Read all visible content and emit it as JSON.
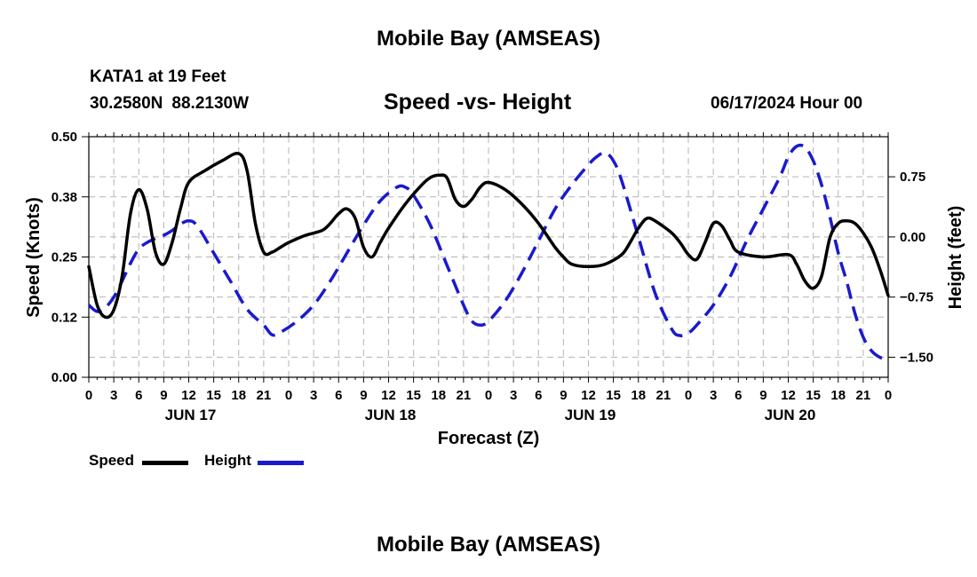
{
  "page": {
    "top_title": "Mobile Bay (AMSEAS)",
    "bottom_title": "Mobile Bay (AMSEAS)",
    "station": "KATA1 at 19 Feet",
    "lat": "30.2580N",
    "lon": "88.2130W",
    "datetime": "06/17/2024 Hour 00"
  },
  "chart_data": {
    "type": "line",
    "title": "Speed -vs- Height",
    "xlabel": "Forecast (Z)",
    "ylabel_left": "Speed (Knots)",
    "ylabel_right": "Height (feet)",
    "x_range_hours": [
      0,
      96
    ],
    "x_ticks": [
      {
        "h": 0,
        "label": "0"
      },
      {
        "h": 3,
        "label": "3"
      },
      {
        "h": 6,
        "label": "6"
      },
      {
        "h": 9,
        "label": "9"
      },
      {
        "h": 12,
        "label": "12"
      },
      {
        "h": 15,
        "label": "15"
      },
      {
        "h": 18,
        "label": "18"
      },
      {
        "h": 21,
        "label": "21"
      },
      {
        "h": 24,
        "label": "0"
      },
      {
        "h": 27,
        "label": "3"
      },
      {
        "h": 30,
        "label": "6"
      },
      {
        "h": 33,
        "label": "9"
      },
      {
        "h": 36,
        "label": "12"
      },
      {
        "h": 39,
        "label": "15"
      },
      {
        "h": 42,
        "label": "18"
      },
      {
        "h": 45,
        "label": "21"
      },
      {
        "h": 48,
        "label": "0"
      },
      {
        "h": 51,
        "label": "3"
      },
      {
        "h": 54,
        "label": "6"
      },
      {
        "h": 57,
        "label": "9"
      },
      {
        "h": 60,
        "label": "12"
      },
      {
        "h": 63,
        "label": "15"
      },
      {
        "h": 66,
        "label": "18"
      },
      {
        "h": 69,
        "label": "21"
      },
      {
        "h": 72,
        "label": "0"
      },
      {
        "h": 75,
        "label": "3"
      },
      {
        "h": 78,
        "label": "6"
      },
      {
        "h": 81,
        "label": "9"
      },
      {
        "h": 84,
        "label": "12"
      },
      {
        "h": 87,
        "label": "15"
      },
      {
        "h": 90,
        "label": "18"
      },
      {
        "h": 93,
        "label": "21"
      },
      {
        "h": 96,
        "label": "0"
      }
    ],
    "day_labels": [
      {
        "h": 12,
        "label": "JUN 17"
      },
      {
        "h": 36,
        "label": "JUN 18"
      },
      {
        "h": 60,
        "label": "JUN 19"
      },
      {
        "h": 84,
        "label": "JUN 20"
      }
    ],
    "ylim_left": [
      0.0,
      0.5
    ],
    "y_ticks_left": [
      {
        "v": 0.0,
        "label": "0.00"
      },
      {
        "v": 0.125,
        "label": "0.12"
      },
      {
        "v": 0.25,
        "label": "0.25"
      },
      {
        "v": 0.375,
        "label": "0.38"
      },
      {
        "v": 0.5,
        "label": "0.50"
      }
    ],
    "ylim_right": [
      -1.75,
      1.25
    ],
    "y_ticks_right": [
      {
        "v": 0.75,
        "label": "0.75"
      },
      {
        "v": 0.0,
        "label": "0.00"
      },
      {
        "v": -0.75,
        "label": "-0.75"
      },
      {
        "v": -1.5,
        "label": "-1.50"
      }
    ],
    "grid": true,
    "legend_position": "bottom-left",
    "series": [
      {
        "name": "Speed",
        "axis": "left",
        "color": "#000000",
        "style": "solid",
        "points": [
          [
            0,
            0.23
          ],
          [
            1,
            0.15
          ],
          [
            2,
            0.125
          ],
          [
            3,
            0.14
          ],
          [
            4,
            0.21
          ],
          [
            5,
            0.34
          ],
          [
            6,
            0.39
          ],
          [
            7,
            0.35
          ],
          [
            8,
            0.26
          ],
          [
            9,
            0.235
          ],
          [
            10,
            0.28
          ],
          [
            11,
            0.35
          ],
          [
            12,
            0.405
          ],
          [
            14,
            0.43
          ],
          [
            16,
            0.45
          ],
          [
            18,
            0.465
          ],
          [
            19,
            0.43
          ],
          [
            20,
            0.32
          ],
          [
            21,
            0.26
          ],
          [
            22,
            0.26
          ],
          [
            23,
            0.27
          ],
          [
            24,
            0.28
          ],
          [
            26,
            0.295
          ],
          [
            28,
            0.305
          ],
          [
            29,
            0.32
          ],
          [
            30,
            0.34
          ],
          [
            31,
            0.35
          ],
          [
            32,
            0.33
          ],
          [
            33,
            0.27
          ],
          [
            34,
            0.25
          ],
          [
            35,
            0.28
          ],
          [
            36,
            0.31
          ],
          [
            38,
            0.36
          ],
          [
            40,
            0.4
          ],
          [
            41,
            0.415
          ],
          [
            42,
            0.42
          ],
          [
            43,
            0.415
          ],
          [
            44,
            0.37
          ],
          [
            45,
            0.355
          ],
          [
            46,
            0.37
          ],
          [
            47,
            0.395
          ],
          [
            48,
            0.405
          ],
          [
            50,
            0.39
          ],
          [
            52,
            0.36
          ],
          [
            54,
            0.32
          ],
          [
            56,
            0.27
          ],
          [
            57,
            0.25
          ],
          [
            58,
            0.235
          ],
          [
            60,
            0.23
          ],
          [
            62,
            0.235
          ],
          [
            64,
            0.255
          ],
          [
            65,
            0.28
          ],
          [
            66,
            0.31
          ],
          [
            67,
            0.33
          ],
          [
            68,
            0.325
          ],
          [
            70,
            0.3
          ],
          [
            71,
            0.28
          ],
          [
            72,
            0.255
          ],
          [
            73,
            0.245
          ],
          [
            74,
            0.28
          ],
          [
            75,
            0.32
          ],
          [
            76,
            0.315
          ],
          [
            77,
            0.285
          ],
          [
            78,
            0.26
          ],
          [
            81,
            0.25
          ],
          [
            84,
            0.255
          ],
          [
            85,
            0.235
          ],
          [
            86,
            0.2
          ],
          [
            87,
            0.185
          ],
          [
            88,
            0.21
          ],
          [
            89,
            0.29
          ],
          [
            90,
            0.32
          ],
          [
            91,
            0.325
          ],
          [
            92,
            0.32
          ],
          [
            93,
            0.3
          ],
          [
            94,
            0.27
          ],
          [
            95,
            0.225
          ],
          [
            96,
            0.17
          ]
        ]
      },
      {
        "name": "Height",
        "axis": "right",
        "color": "#1a1acc",
        "style": "dashed",
        "points": [
          [
            0,
            -0.85
          ],
          [
            1,
            -0.93
          ],
          [
            2,
            -0.88
          ],
          [
            3,
            -0.75
          ],
          [
            4,
            -0.55
          ],
          [
            5,
            -0.33
          ],
          [
            6,
            -0.15
          ],
          [
            7,
            -0.07
          ],
          [
            8,
            -0.02
          ],
          [
            9,
            0.02
          ],
          [
            10,
            0.08
          ],
          [
            11,
            0.16
          ],
          [
            12,
            0.2
          ],
          [
            13,
            0.14
          ],
          [
            15,
            -0.2
          ],
          [
            17,
            -0.55
          ],
          [
            19,
            -0.9
          ],
          [
            21,
            -1.1
          ],
          [
            22,
            -1.22
          ],
          [
            23,
            -1.19
          ],
          [
            25,
            -1.05
          ],
          [
            27,
            -0.85
          ],
          [
            29,
            -0.55
          ],
          [
            31,
            -0.2
          ],
          [
            33,
            0.15
          ],
          [
            35,
            0.45
          ],
          [
            37,
            0.62
          ],
          [
            38,
            0.62
          ],
          [
            39,
            0.52
          ],
          [
            41,
            0.15
          ],
          [
            43,
            -0.35
          ],
          [
            45,
            -0.85
          ],
          [
            46,
            -1.05
          ],
          [
            47,
            -1.1
          ],
          [
            48,
            -1.05
          ],
          [
            50,
            -0.8
          ],
          [
            52,
            -0.45
          ],
          [
            54,
            -0.05
          ],
          [
            56,
            0.35
          ],
          [
            58,
            0.65
          ],
          [
            60,
            0.9
          ],
          [
            61,
            1.0
          ],
          [
            62,
            1.05
          ],
          [
            63,
            0.95
          ],
          [
            64,
            0.7
          ],
          [
            66,
            0.0
          ],
          [
            68,
            -0.7
          ],
          [
            70,
            -1.15
          ],
          [
            71,
            -1.23
          ],
          [
            72,
            -1.2
          ],
          [
            73,
            -1.1
          ],
          [
            75,
            -0.85
          ],
          [
            77,
            -0.5
          ],
          [
            79,
            -0.05
          ],
          [
            81,
            0.35
          ],
          [
            83,
            0.75
          ],
          [
            84,
            1.0
          ],
          [
            85,
            1.13
          ],
          [
            86,
            1.12
          ],
          [
            87,
            0.95
          ],
          [
            88,
            0.65
          ],
          [
            89,
            0.25
          ],
          [
            90,
            -0.2
          ],
          [
            91,
            -0.55
          ],
          [
            92,
            -0.95
          ],
          [
            93,
            -1.25
          ],
          [
            94,
            -1.42
          ],
          [
            95,
            -1.5
          ],
          [
            96,
            -1.53
          ]
        ]
      }
    ]
  }
}
